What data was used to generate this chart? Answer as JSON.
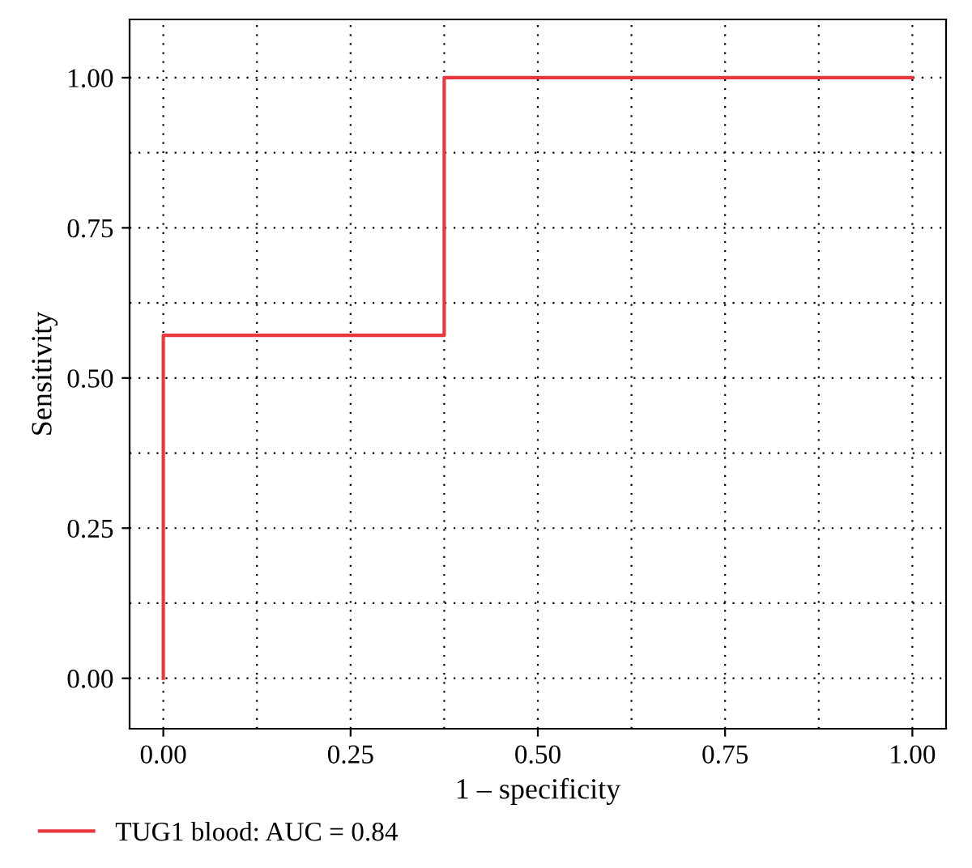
{
  "chart_data": {
    "type": "line",
    "xlabel": "1 – specificity",
    "ylabel": "Sensitivity",
    "x": [
      0,
      0,
      0.375,
      0.375,
      1
    ],
    "series": [
      {
        "name": "TUG1 blood: AUC = 0.84",
        "color": "#e8383d",
        "values": [
          0,
          0.571,
          0.571,
          1,
          1
        ]
      }
    ],
    "xlim": [
      -0.045,
      1.045
    ],
    "ylim": [
      -0.084,
      1.097
    ],
    "xticks": [
      {
        "value": 0,
        "label": "0.00"
      },
      {
        "value": 0.25,
        "label": "0.25"
      },
      {
        "value": 0.5,
        "label": "0.50"
      },
      {
        "value": 0.75,
        "label": "0.75"
      },
      {
        "value": 1,
        "label": "1.00"
      }
    ],
    "yticks": [
      {
        "value": 0,
        "label": "0.00"
      },
      {
        "value": 0.25,
        "label": "0.25"
      },
      {
        "value": 0.5,
        "label": "0.50"
      },
      {
        "value": 0.75,
        "label": "0.75"
      },
      {
        "value": 1,
        "label": "1.00"
      }
    ],
    "grid": true,
    "legend": "bottom left",
    "line_style": "solid",
    "marker": "none"
  }
}
